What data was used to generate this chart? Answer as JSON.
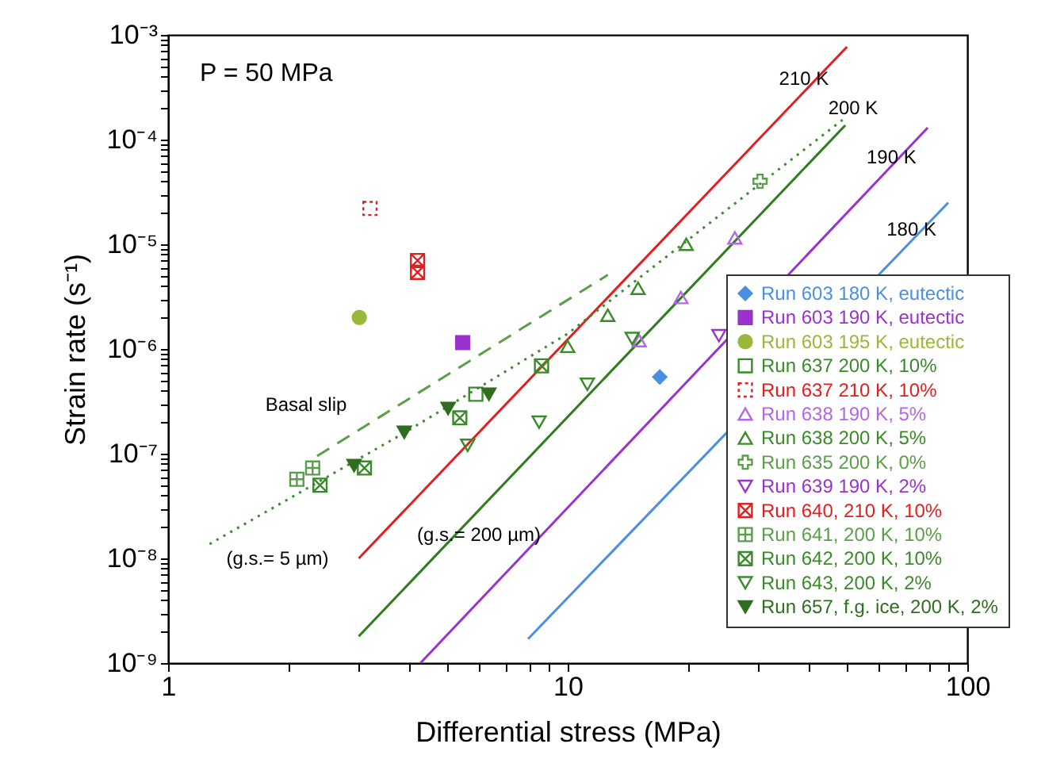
{
  "chart_data": {
    "type": "scatter",
    "xlabel": "Differential stress (MPa)",
    "ylabel": "Strain rate (s⁻¹)",
    "log": "xy",
    "grid": false,
    "legend": "right",
    "xlim": [
      1,
      100
    ],
    "ylim": [
      1e-09,
      0.001
    ],
    "xticks": [
      1,
      {
        "value": 2,
        "label": null
      },
      {
        "value": 3,
        "label": null
      },
      {
        "value": 4,
        "label": null
      },
      {
        "value": 5,
        "label": null
      },
      {
        "value": 6,
        "label": null
      },
      {
        "value": 7,
        "label": null
      },
      {
        "value": 8,
        "label": null
      },
      {
        "value": 9,
        "label": null
      },
      10,
      {
        "value": 20,
        "label": null
      },
      {
        "value": 30,
        "label": null
      },
      {
        "value": 40,
        "label": null
      },
      {
        "value": 50,
        "label": null
      },
      {
        "value": 60,
        "label": null
      },
      {
        "value": 70,
        "label": null
      },
      {
        "value": 80,
        "label": null
      },
      {
        "value": 90,
        "label": null
      },
      100
    ],
    "yticks": [
      {
        "value": 1e-09,
        "label": "10⁻⁹"
      },
      {
        "value": 2e-09,
        "label": null
      },
      {
        "value": 3e-09,
        "label": null
      },
      {
        "value": 4e-09,
        "label": null
      },
      {
        "value": 5e-09,
        "label": null
      },
      {
        "value": 6e-09,
        "label": null
      },
      {
        "value": 7e-09,
        "label": null
      },
      {
        "value": 8e-09,
        "label": null
      },
      {
        "value": 9e-09,
        "label": null
      },
      {
        "value": 1e-08,
        "label": "10⁻⁸"
      },
      {
        "value": 2e-08,
        "label": null
      },
      {
        "value": 3e-08,
        "label": null
      },
      {
        "value": 4e-08,
        "label": null
      },
      {
        "value": 5e-08,
        "label": null
      },
      {
        "value": 6e-08,
        "label": null
      },
      {
        "value": 7e-08,
        "label": null
      },
      {
        "value": 8e-08,
        "label": null
      },
      {
        "value": 9e-08,
        "label": null
      },
      {
        "value": 1e-07,
        "label": "10⁻⁷"
      },
      {
        "value": 2e-07,
        "label": null
      },
      {
        "value": 3e-07,
        "label": null
      },
      {
        "value": 4e-07,
        "label": null
      },
      {
        "value": 5e-07,
        "label": null
      },
      {
        "value": 6e-07,
        "label": null
      },
      {
        "value": 7e-07,
        "label": null
      },
      {
        "value": 8e-07,
        "label": null
      },
      {
        "value": 9e-07,
        "label": null
      },
      {
        "value": 1e-06,
        "label": "10⁻⁶"
      },
      {
        "value": 2e-06,
        "label": null
      },
      {
        "value": 3e-06,
        "label": null
      },
      {
        "value": 4e-06,
        "label": null
      },
      {
        "value": 5e-06,
        "label": null
      },
      {
        "value": 6e-06,
        "label": null
      },
      {
        "value": 7e-06,
        "label": null
      },
      {
        "value": 8e-06,
        "label": null
      },
      {
        "value": 9e-06,
        "label": null
      },
      {
        "value": 1e-05,
        "label": "10⁻⁵"
      },
      {
        "value": 2e-05,
        "label": null
      },
      {
        "value": 3e-05,
        "label": null
      },
      {
        "value": 4e-05,
        "label": null
      },
      {
        "value": 5e-05,
        "label": null
      },
      {
        "value": 6e-05,
        "label": null
      },
      {
        "value": 7e-05,
        "label": null
      },
      {
        "value": 8e-05,
        "label": null
      },
      {
        "value": 9e-05,
        "label": null
      },
      {
        "value": 0.0001,
        "label": "10⁻⁴"
      },
      {
        "value": 0.0002,
        "label": null
      },
      {
        "value": 0.0003,
        "label": null
      },
      {
        "value": 0.0004,
        "label": null
      },
      {
        "value": 0.0005,
        "label": null
      },
      {
        "value": 0.0006,
        "label": null
      },
      {
        "value": 0.0007,
        "label": null
      },
      {
        "value": 0.0008,
        "label": null
      },
      {
        "value": 0.0009,
        "label": null
      },
      {
        "value": 0.001,
        "label": "10⁻³"
      }
    ],
    "series": [
      {
        "name": "Run 603 180 K, eutectic",
        "color": "#4a8fe0",
        "marker": "diamond",
        "x": [
          17.0
        ],
        "values": [
          5.4e-07
        ]
      },
      {
        "name": "Run 603 190 K, eutectic",
        "color": "#9933cc",
        "marker": "square",
        "x": [
          5.46
        ],
        "values": [
          1.15e-06
        ]
      },
      {
        "name": "Run 603 195 K, eutectic",
        "color": "#99b83a",
        "marker": "circle",
        "x": [
          3.01
        ],
        "values": [
          2e-06
        ]
      },
      {
        "name": "Run 637 200 K, 10%",
        "color": "#3a8a2a",
        "marker": "square-open",
        "x": [
          5.89
        ],
        "values": [
          3.7e-07
        ]
      },
      {
        "name": "Run 637 210 K, 10%",
        "color": "#e02020",
        "marker": "square-open",
        "line_style": "dotted",
        "x": [
          3.2
        ],
        "values": [
          2.2e-05
        ]
      },
      {
        "name": "Run 638 190 K, 5%",
        "color": "#b366e6",
        "marker": "triangle-open",
        "x": [
          15.1,
          19.2,
          26.2
        ],
        "values": [
          1.2e-06,
          3.1e-06,
          1.15e-05
        ]
      },
      {
        "name": "Run 638 200 K, 5%",
        "color": "#3a8a2a",
        "marker": "triangle-open",
        "x": [
          10.0,
          12.6,
          15.0,
          19.8
        ],
        "values": [
          1.06e-06,
          2.1e-06,
          3.8e-06,
          1e-05
        ]
      },
      {
        "name": "Run 635 200 K, 0%",
        "color": "#5a9e4a",
        "marker": "cross-open",
        "x": [
          30.3
        ],
        "values": [
          4e-05
        ]
      },
      {
        "name": "Run 639 190 K, 2%",
        "color": "#9933cc",
        "marker": "triangle-down-open",
        "x": [
          23.9
        ],
        "values": [
          1.34e-06
        ]
      },
      {
        "name": "Run 640, 210 K, 10%",
        "color": "#e02020",
        "marker": "cross-x",
        "x": [
          4.21,
          4.21
        ],
        "values": [
          7e-06,
          5.4e-06
        ]
      },
      {
        "name": "Run 641, 200 K, 10%",
        "color": "#5a9e4a",
        "marker": "cross-plus",
        "x": [
          2.1,
          2.3
        ],
        "values": [
          5.7e-08,
          7.3e-08
        ]
      },
      {
        "name": "Run 642, 200 K, 10%",
        "color": "#3a8a2a",
        "marker": "cross-x",
        "x": [
          2.4,
          3.1,
          5.37,
          8.6
        ],
        "values": [
          5e-08,
          7.3e-08,
          2.2e-07,
          6.9e-07
        ]
      },
      {
        "name": "Run 643, 200 K, 2%",
        "color": "#3a8a2a",
        "marker": "triangle-down-open",
        "x": [
          5.62,
          8.48,
          11.2,
          14.5
        ],
        "values": [
          1.2e-07,
          2e-07,
          4.6e-07,
          1.26e-06
        ]
      },
      {
        "name": "Run 657, f.g. ice, 200 K, 2%",
        "color": "#2e6e1e",
        "marker": "triangle-down",
        "x": [
          2.92,
          3.9,
          5.02,
          6.35
        ],
        "values": [
          7.7e-08,
          1.6e-07,
          2.7e-07,
          3.7e-07
        ]
      },
      {
        "type": "line",
        "color": "#e02020",
        "line_style": "solid",
        "marker": "none",
        "x": [
          3,
          50
        ],
        "values": [
          1e-08,
          0.00077
        ]
      },
      {
        "type": "line",
        "color": "#2e7d1e",
        "line_style": "solid",
        "marker": "none",
        "x": [
          3,
          49.5
        ],
        "values": [
          1.8e-09,
          0.000137
        ]
      },
      {
        "type": "line",
        "color": "#9933cc",
        "line_style": "solid",
        "marker": "none",
        "x": [
          4.28,
          79.6
        ],
        "values": [
          1e-09,
          0.00013
        ]
      },
      {
        "type": "line",
        "color": "#4a8fe0",
        "line_style": "solid",
        "marker": "none",
        "x": [
          7.96,
          89.6
        ],
        "values": [
          1.7e-09,
          2.5e-05
        ]
      },
      {
        "type": "line",
        "color": "#3a8a2a",
        "line_style": "dotted",
        "marker": "none",
        "x": [
          1.27,
          3.9,
          10,
          21.1,
          49
        ],
        "values": [
          1.37e-08,
          1.58e-07,
          1.4e-06,
          1.29e-05,
          0.000157
        ]
      },
      {
        "type": "line",
        "color": "#5a9e4a",
        "line_style": "dashed",
        "marker": "none",
        "x": [
          2.36,
          12.6
        ],
        "values": [
          9.5e-08,
          5.1e-06
        ]
      }
    ],
    "annotations": [
      "P = 50 MPa",
      "Basal slip",
      "(g.s.= 5 µm)",
      "(g.s.= 200 µm)",
      {
        "text": "210 K",
        "x": 39,
        "y": 0.00038
      },
      "200 K",
      {
        "text": "190 K",
        "x": 64.6,
        "y": 6.8e-05
      },
      {
        "text": "180 K",
        "x": 72.5,
        "y": 1.4e-05
      }
    ]
  }
}
